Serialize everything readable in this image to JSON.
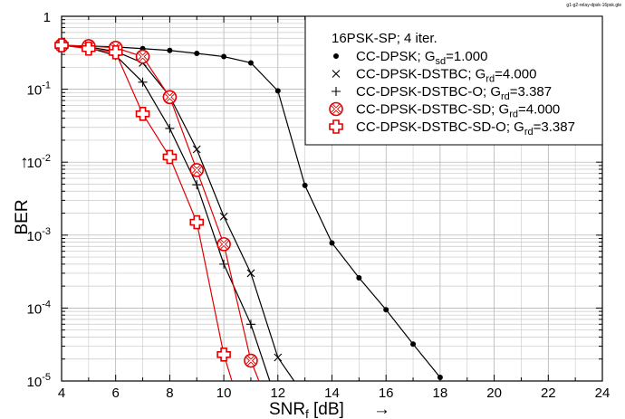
{
  "filename": "g1-g2-relay-dpsk-16psk.gle",
  "chart_data": {
    "type": "line",
    "title": "",
    "xlabel": "SNR",
    "xlabel_sub": "f",
    "xlabel_unit": "[dB]",
    "ylabel": "BER",
    "axis_arrow": "→",
    "xlim": [
      4,
      24
    ],
    "ylim": [
      1e-05,
      1
    ],
    "yscale": "log",
    "grid": true,
    "x_ticks": [
      "4",
      "6",
      "8",
      "10",
      "12",
      "14",
      "16",
      "18",
      "20",
      "22",
      "24"
    ],
    "y_ticks": [
      {
        "base": "1",
        "exp": ""
      },
      {
        "base": "10",
        "exp": "-1"
      },
      {
        "base": "10",
        "exp": "-2"
      },
      {
        "base": "10",
        "exp": "-3"
      },
      {
        "base": "10",
        "exp": "-4"
      },
      {
        "base": "10",
        "exp": "-5"
      }
    ],
    "legend": {
      "placement": "top-right",
      "header": "16PSK-SP; 4 iter.",
      "entries": [
        {
          "text": "CC-DPSK; G",
          "sub": "sd",
          "tail": "=1.000",
          "marker": "dot",
          "color": "#000000"
        },
        {
          "text": "CC-DPSK-DSTBC; G",
          "sub": "rd",
          "tail": "=4.000",
          "marker": "x",
          "color": "#000000"
        },
        {
          "text": "CC-DPSK-DSTBC-O; G",
          "sub": "rd",
          "tail": "=3.387",
          "marker": "plus",
          "color": "#000000"
        },
        {
          "text": "CC-DPSK-DSTBC-SD; G",
          "sub": "rd",
          "tail": "=4.000",
          "marker": "circx",
          "color": "#e00000"
        },
        {
          "text": "CC-DPSK-DSTBC-SD-O; G",
          "sub": "rd",
          "tail": "=3.387",
          "marker": "circplus",
          "color": "#e00000"
        }
      ]
    },
    "series": [
      {
        "name": "CC-DPSK; Gsd=1.000",
        "color": "#000000",
        "marker": "dot",
        "x": [
          4,
          5,
          6,
          7,
          8,
          9,
          10,
          11,
          12,
          13,
          14,
          15,
          16,
          17,
          18
        ],
        "y": [
          0.4,
          0.39,
          0.38,
          0.36,
          0.34,
          0.31,
          0.28,
          0.23,
          0.095,
          0.0048,
          0.00078,
          0.00026,
          9.5e-05,
          3.2e-05,
          1.12e-05
        ]
      },
      {
        "name": "CC-DPSK-DSTBC; Grd=4.000",
        "color": "#000000",
        "marker": "x",
        "x": [
          4,
          5,
          6,
          7,
          8,
          9,
          10,
          11,
          12,
          12.6
        ],
        "y": [
          0.4,
          0.38,
          0.33,
          0.23,
          0.08,
          0.015,
          0.0018,
          0.0003,
          2.1e-05,
          1e-05
        ]
      },
      {
        "name": "CC-DPSK-DSTBC-O; Grd=3.387",
        "color": "#000000",
        "marker": "plus",
        "x": [
          4,
          5,
          6,
          7,
          8,
          9,
          10,
          11,
          11.7
        ],
        "y": [
          0.4,
          0.37,
          0.29,
          0.125,
          0.029,
          0.0049,
          0.0004,
          6e-05,
          1e-05
        ]
      },
      {
        "name": "CC-DPSK-DSTBC-SD; Grd=4.000",
        "color": "#e00000",
        "marker": "circx",
        "x": [
          4,
          5,
          6,
          7,
          8,
          9,
          10,
          11,
          11.3
        ],
        "y": [
          0.4,
          0.39,
          0.37,
          0.28,
          0.078,
          0.0078,
          0.00075,
          1.9e-05,
          1e-05
        ]
      },
      {
        "name": "CC-DPSK-DSTBC-SD-O; Grd=3.387",
        "color": "#e00000",
        "marker": "circplus",
        "x": [
          4,
          5,
          6,
          7,
          8,
          9,
          10,
          10.3
        ],
        "y": [
          0.4,
          0.36,
          0.32,
          0.046,
          0.0118,
          0.0015,
          2.3e-05,
          1e-05
        ]
      }
    ]
  }
}
